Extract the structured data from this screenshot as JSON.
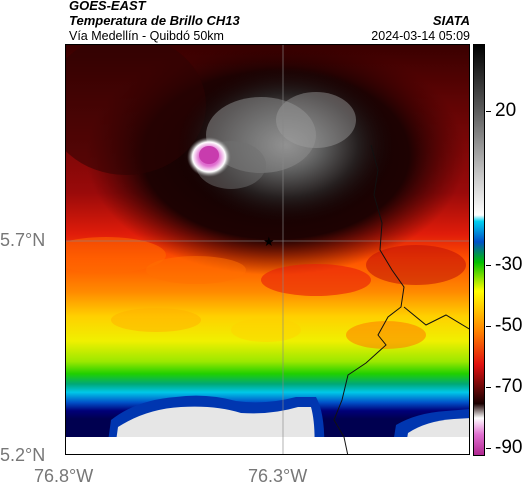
{
  "header": {
    "satellite": "GOES-EAST",
    "title": "Temperatura de Brillo CH13",
    "organization": "SIATA",
    "subtitle": "Vía Medellín - Quibdó 50km",
    "timestamp": "2024-03-14 05:09"
  },
  "axes": {
    "lat_labels": [
      "5.7°N",
      "5.2°N"
    ],
    "lon_labels": [
      "76.8°W",
      "76.3°W"
    ]
  },
  "colorbar": {
    "tick_labels": [
      "20",
      "-30",
      "-50",
      "-70",
      "-90"
    ],
    "range": [
      -95,
      40
    ]
  },
  "map": {
    "marker": "star-icon",
    "colors": {
      "warm_dark": "#1a0000",
      "dark_red": "#5a0808",
      "red": "#c81010",
      "orange": "#ff5a00",
      "yellow": "#ffee00",
      "green": "#22dd00",
      "cyan": "#00c8e8",
      "navy": "#000078",
      "cloud_white": "#e8e8e8",
      "magenta": "#d040b8"
    }
  }
}
